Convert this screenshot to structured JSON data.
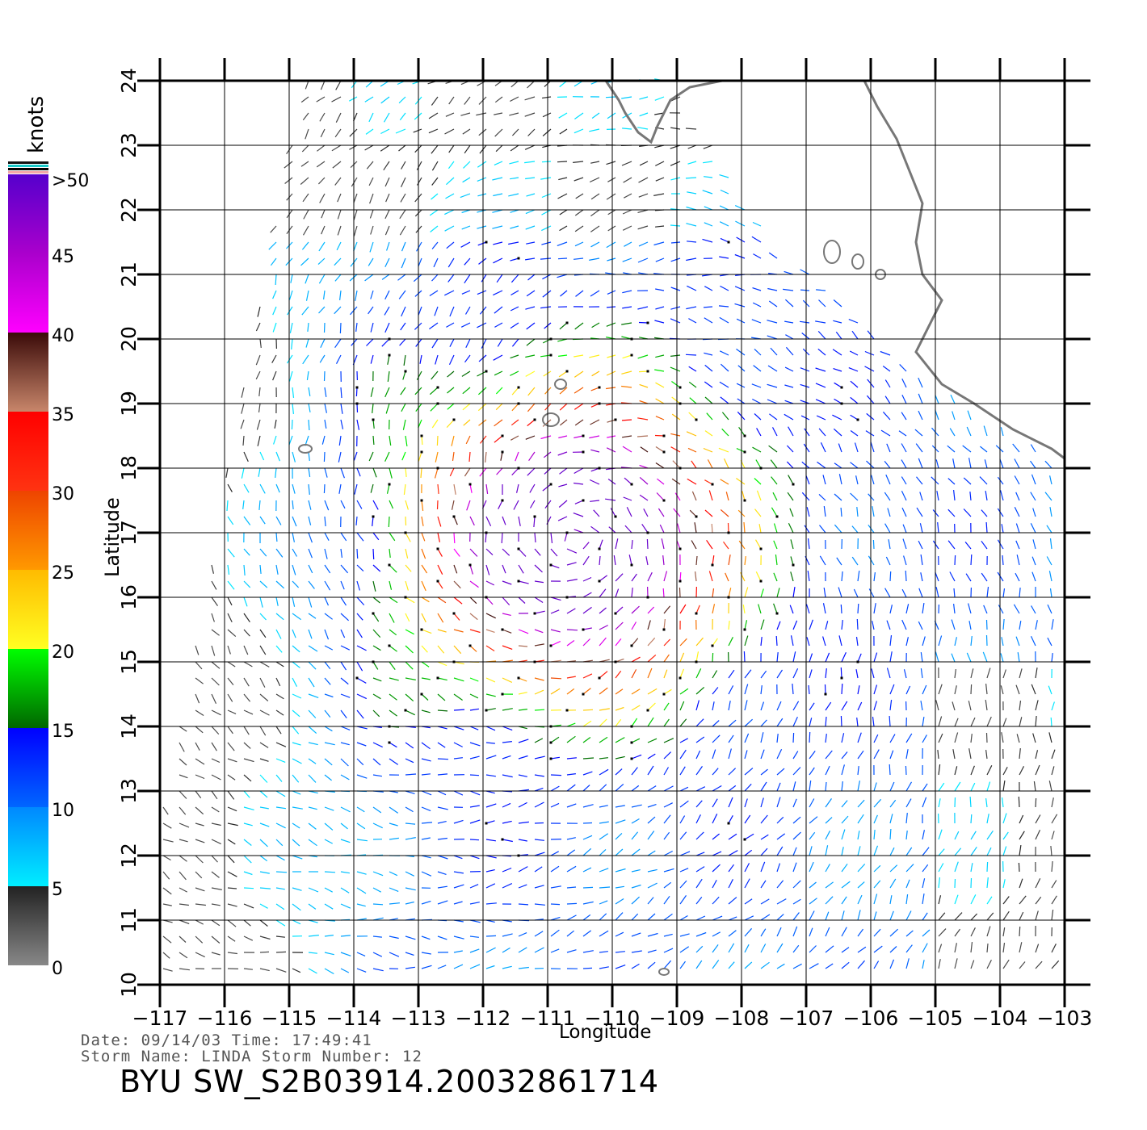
{
  "colorbar": {
    "units": "knots",
    "labels": [
      ">50",
      "45",
      "40",
      "35",
      "30",
      "25",
      "20",
      "15",
      "10",
      "5",
      "0"
    ],
    "segments": [
      {
        "from": 0,
        "to": 5,
        "colors": [
          "#888888",
          "#222222"
        ]
      },
      {
        "from": 5,
        "to": 10,
        "colors": [
          "#00eeff",
          "#0088ff"
        ]
      },
      {
        "from": 10,
        "to": 15,
        "colors": [
          "#0066ff",
          "#0000ff"
        ]
      },
      {
        "from": 15,
        "to": 20,
        "colors": [
          "#006600",
          "#00ff00"
        ]
      },
      {
        "from": 20,
        "to": 25,
        "colors": [
          "#ffff22",
          "#ffbb00"
        ]
      },
      {
        "from": 25,
        "to": 30,
        "colors": [
          "#ff9900",
          "#ee4400"
        ]
      },
      {
        "from": 30,
        "to": 35,
        "colors": [
          "#ff3311",
          "#ff0000"
        ]
      },
      {
        "from": 35,
        "to": 40,
        "colors": [
          "#c8866a",
          "#3a0a08"
        ]
      },
      {
        "from": 40,
        "to": 45,
        "colors": [
          "#ff00ff",
          "#aa00cc"
        ]
      },
      {
        "from": 45,
        "to": 50,
        "colors": [
          "#aa00cc",
          "#5500cc"
        ]
      }
    ]
  },
  "map": {
    "longitudes": [
      -117,
      -116,
      -115,
      -114,
      -113,
      -112,
      -111,
      -110,
      -109,
      -108,
      -107,
      -106,
      -105,
      -104,
      -103
    ],
    "longitude_labels": [
      "−117",
      "−116",
      "−115",
      "−114",
      "−113",
      "−112",
      "−111",
      "−110",
      "−109",
      "−108",
      "−107",
      "−106",
      "−105",
      "−104",
      "−103"
    ],
    "latitudes": [
      10,
      11,
      12,
      13,
      14,
      15,
      16,
      17,
      18,
      19,
      20,
      21,
      22,
      23,
      24
    ],
    "latitude_labels": [
      "10",
      "11",
      "12",
      "13",
      "14",
      "15",
      "16",
      "17",
      "18",
      "19",
      "20",
      "21",
      "22",
      "23",
      "24"
    ],
    "xlabel": "Longitude",
    "ylabel": "Latitude",
    "storm_center": {
      "lon": -110.6,
      "lat": 16.9
    },
    "max_wind_knots": 45
  },
  "meta": {
    "date_line": "Date: 09/14/03   Time: 17:49:41",
    "storm_line": "Storm Name: LINDA   Storm Number: 12"
  },
  "footer_title": "BYU SW_S2B03914.20032861714"
}
